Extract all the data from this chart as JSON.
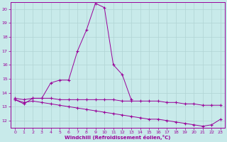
{
  "xlabel": "Windchill (Refroidissement éolien,°C)",
  "background_color": "#c8eaea",
  "grid_color": "#b0d4d4",
  "line_color": "#990099",
  "peak_x": [
    0,
    1,
    2,
    3,
    4,
    5,
    6,
    7,
    8,
    9,
    10,
    11,
    12,
    13
  ],
  "peak_y": [
    13.5,
    13.2,
    13.6,
    13.6,
    14.7,
    14.9,
    14.9,
    17.0,
    18.5,
    20.4,
    20.1,
    16.0,
    15.3,
    13.5
  ],
  "flat_x": [
    0,
    1,
    2,
    3,
    4,
    5,
    6,
    7,
    8,
    9,
    10,
    11,
    12,
    13,
    14,
    15,
    16,
    17,
    18,
    19,
    20,
    21,
    22,
    23
  ],
  "flat_y": [
    13.6,
    13.5,
    13.6,
    13.6,
    13.6,
    13.5,
    13.5,
    13.5,
    13.5,
    13.5,
    13.5,
    13.5,
    13.4,
    13.4,
    13.4,
    13.4,
    13.4,
    13.3,
    13.3,
    13.2,
    13.2,
    13.1,
    13.1,
    13.1
  ],
  "desc_x": [
    0,
    1,
    2,
    3,
    4,
    5,
    6,
    7,
    8,
    9,
    10,
    11,
    12,
    13,
    14,
    15,
    16,
    17,
    18,
    19,
    20,
    21,
    22,
    23
  ],
  "desc_y": [
    13.5,
    13.3,
    13.4,
    13.3,
    13.2,
    13.1,
    13.0,
    12.9,
    12.8,
    12.7,
    12.6,
    12.5,
    12.4,
    12.3,
    12.2,
    12.1,
    12.1,
    12.0,
    11.9,
    11.8,
    11.7,
    11.6,
    11.7,
    12.1
  ],
  "xlim": [
    -0.5,
    23.5
  ],
  "ylim": [
    11.5,
    20.5
  ],
  "yticks": [
    12,
    13,
    14,
    15,
    16,
    17,
    18,
    19,
    20
  ],
  "xticks": [
    0,
    1,
    2,
    3,
    4,
    5,
    6,
    7,
    8,
    9,
    10,
    11,
    12,
    13,
    14,
    15,
    16,
    17,
    18,
    19,
    20,
    21,
    22,
    23
  ]
}
